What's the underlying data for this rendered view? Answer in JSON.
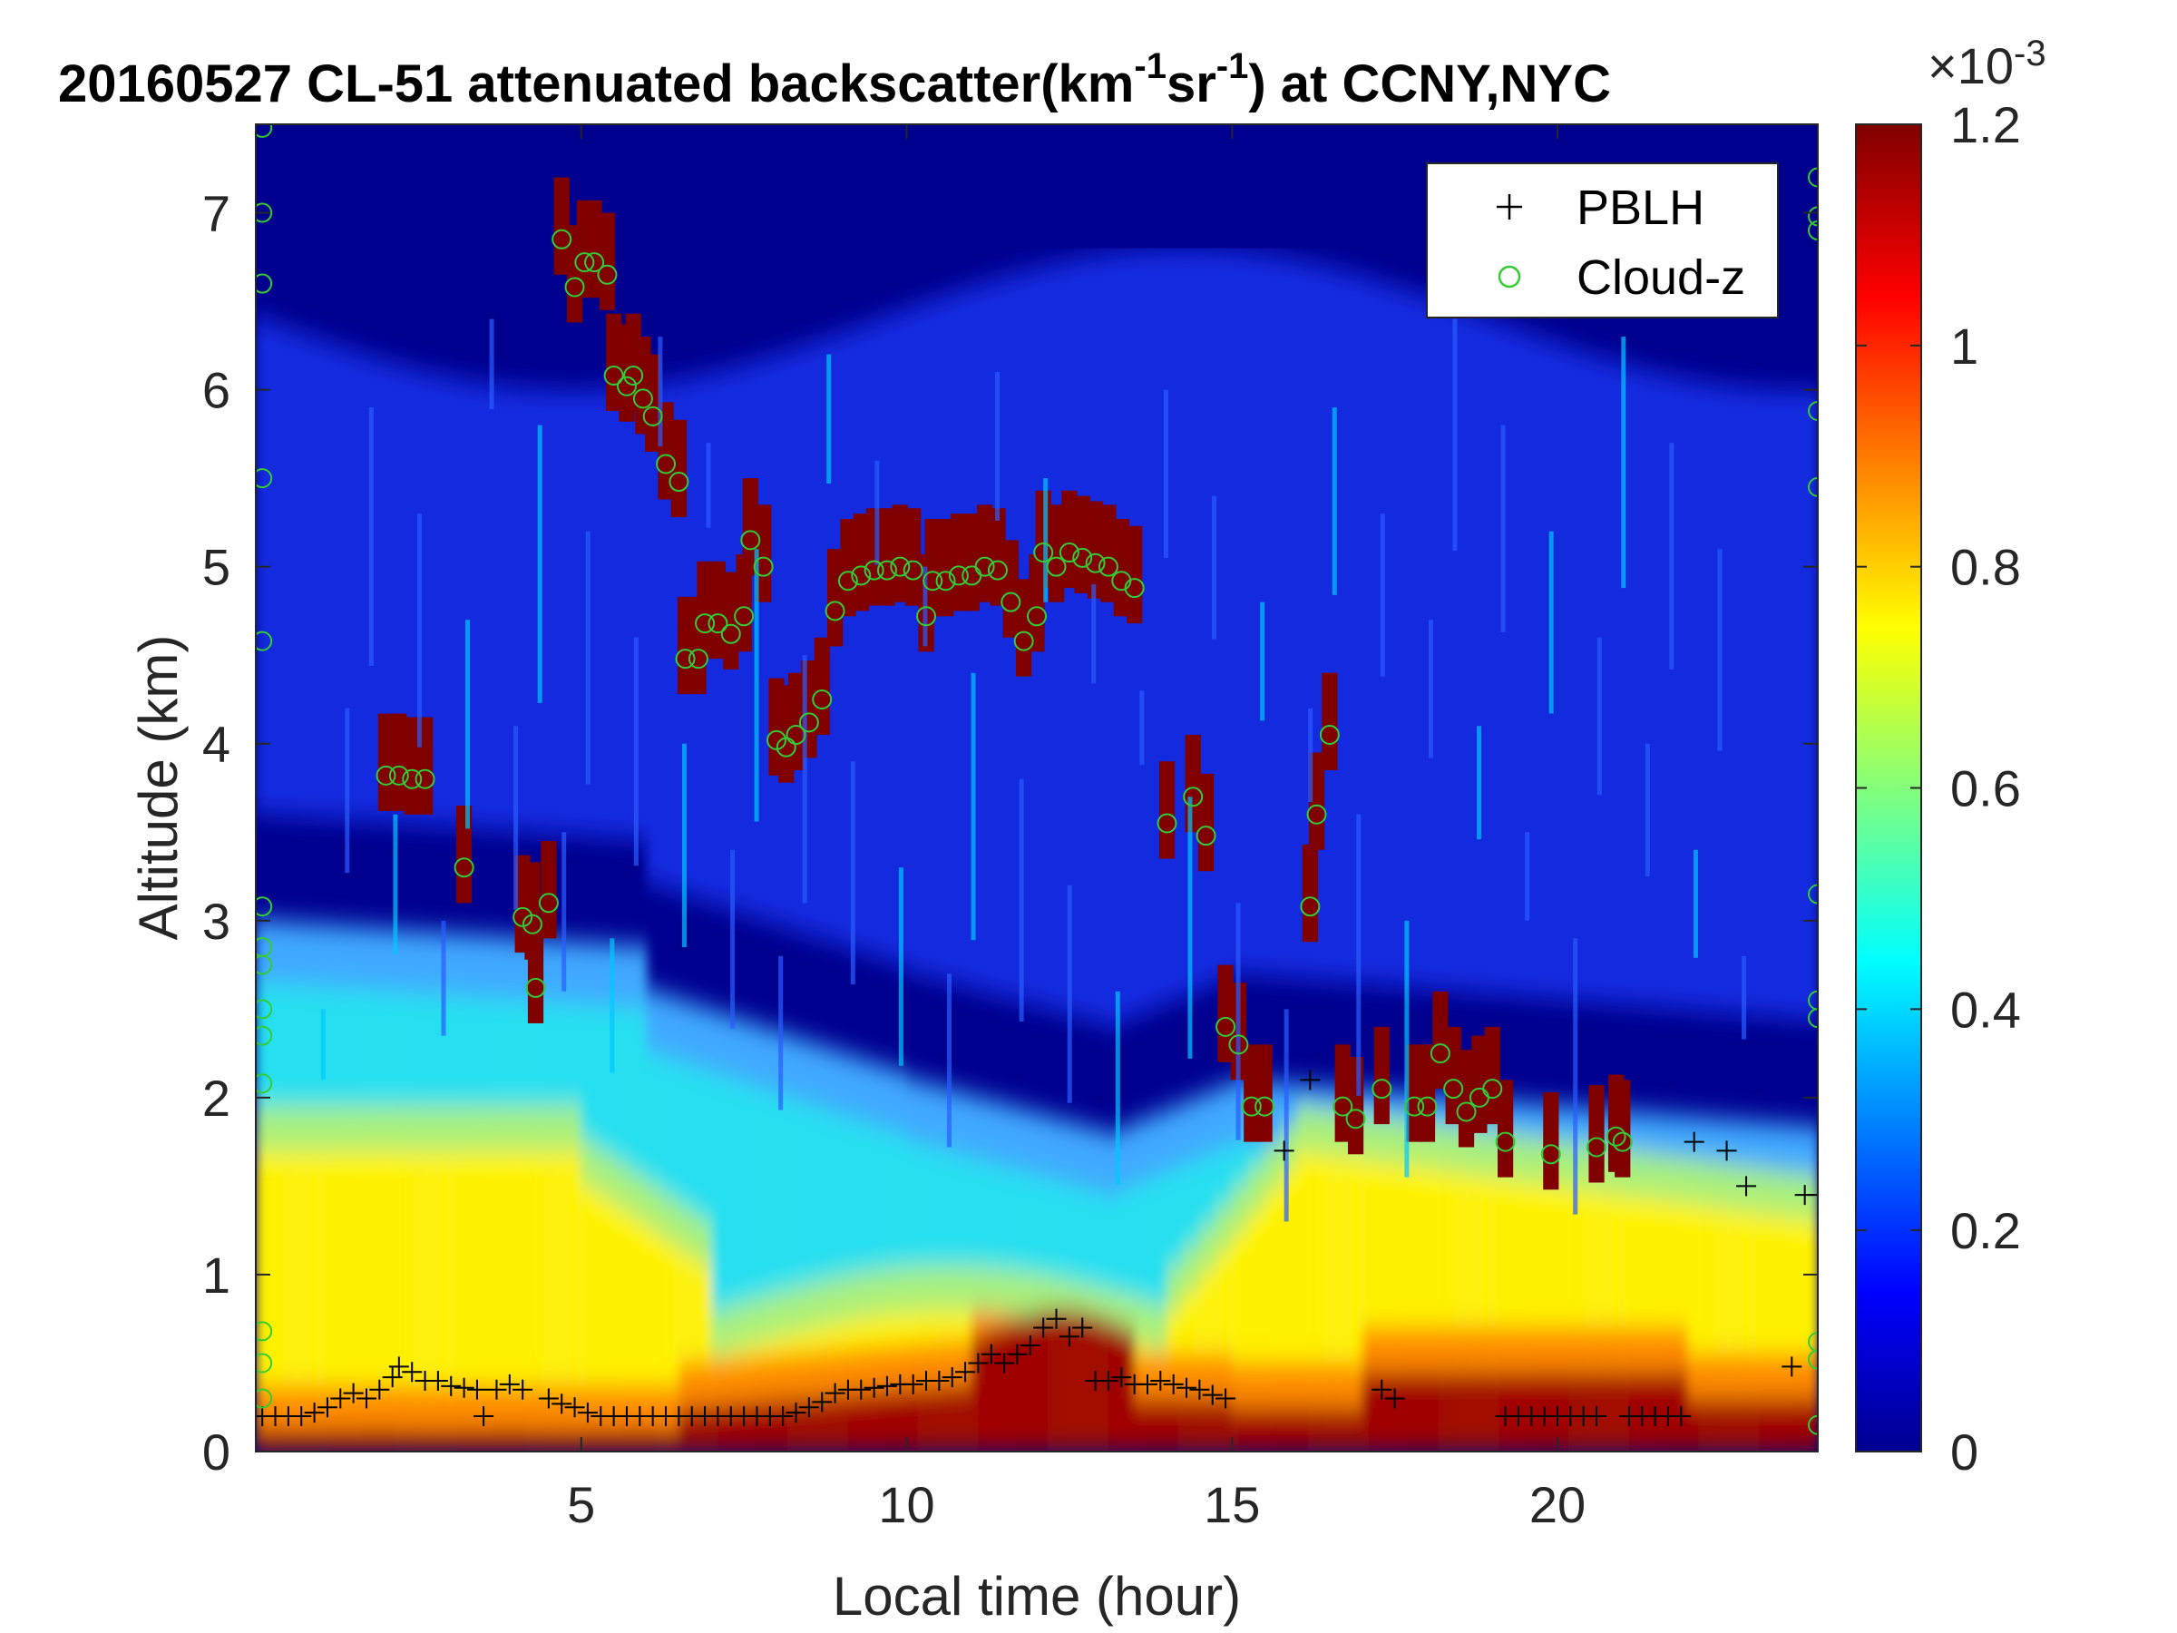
{
  "chart_data": {
    "type": "heatmap",
    "title": {
      "prefix": "20160527  CL-51 attenuated backscatter(km",
      "sup1": "-1",
      "mid": "sr",
      "sup2": "-1",
      "suffix": ") at CCNY,NYC"
    },
    "xlabel": "Local time (hour)",
    "ylabel": "Altitude (km)",
    "xlim": [
      0,
      24
    ],
    "ylim": [
      0,
      7.5
    ],
    "x_ticks": [
      5,
      10,
      15,
      20
    ],
    "y_ticks": [
      0,
      1,
      2,
      3,
      4,
      5,
      6,
      7
    ],
    "colorbar": {
      "colormap": "jet",
      "range": [
        0,
        1.2
      ],
      "ticks": [
        0,
        0.2,
        0.4,
        0.6,
        0.8,
        1,
        1.2
      ],
      "tick_labels": [
        "0",
        "0.2",
        "0.4",
        "0.6",
        "0.8",
        "1",
        "1.2"
      ],
      "exponent": {
        "base": "×10",
        "power": "-3"
      }
    },
    "legend": {
      "placement": "top-right",
      "entries": [
        {
          "label": "PBLH",
          "marker": "+",
          "color": "#000000"
        },
        {
          "label": "Cloud-z",
          "marker": "o",
          "color": "#33cc33"
        }
      ]
    },
    "series": [
      {
        "name": "PBLH",
        "points": [
          [
            0.1,
            0.2
          ],
          [
            0.3,
            0.2
          ],
          [
            0.5,
            0.2
          ],
          [
            0.7,
            0.2
          ],
          [
            0.9,
            0.22
          ],
          [
            1.1,
            0.25
          ],
          [
            1.3,
            0.3
          ],
          [
            1.5,
            0.33
          ],
          [
            1.7,
            0.3
          ],
          [
            1.9,
            0.35
          ],
          [
            2.1,
            0.42
          ],
          [
            2.2,
            0.48
          ],
          [
            2.4,
            0.45
          ],
          [
            2.6,
            0.4
          ],
          [
            2.8,
            0.4
          ],
          [
            3.0,
            0.37
          ],
          [
            3.2,
            0.36
          ],
          [
            3.4,
            0.35
          ],
          [
            3.5,
            0.2
          ],
          [
            3.7,
            0.35
          ],
          [
            3.9,
            0.38
          ],
          [
            4.1,
            0.35
          ],
          [
            4.5,
            0.3
          ],
          [
            4.7,
            0.27
          ],
          [
            4.9,
            0.25
          ],
          [
            5.1,
            0.22
          ],
          [
            5.3,
            0.2
          ],
          [
            5.5,
            0.2
          ],
          [
            5.7,
            0.2
          ],
          [
            5.9,
            0.2
          ],
          [
            6.1,
            0.2
          ],
          [
            6.3,
            0.2
          ],
          [
            6.5,
            0.2
          ],
          [
            6.7,
            0.2
          ],
          [
            6.9,
            0.2
          ],
          [
            7.1,
            0.2
          ],
          [
            7.3,
            0.2
          ],
          [
            7.5,
            0.2
          ],
          [
            7.7,
            0.2
          ],
          [
            7.9,
            0.2
          ],
          [
            8.1,
            0.2
          ],
          [
            8.3,
            0.22
          ],
          [
            8.5,
            0.25
          ],
          [
            8.7,
            0.28
          ],
          [
            8.9,
            0.33
          ],
          [
            9.1,
            0.35
          ],
          [
            9.3,
            0.35
          ],
          [
            9.5,
            0.36
          ],
          [
            9.7,
            0.37
          ],
          [
            9.9,
            0.38
          ],
          [
            10.1,
            0.38
          ],
          [
            10.3,
            0.4
          ],
          [
            10.5,
            0.4
          ],
          [
            10.7,
            0.42
          ],
          [
            10.9,
            0.45
          ],
          [
            11.1,
            0.5
          ],
          [
            11.3,
            0.55
          ],
          [
            11.5,
            0.5
          ],
          [
            11.7,
            0.55
          ],
          [
            11.9,
            0.6
          ],
          [
            12.1,
            0.7
          ],
          [
            12.3,
            0.75
          ],
          [
            12.5,
            0.65
          ],
          [
            12.7,
            0.7
          ],
          [
            12.9,
            0.4
          ],
          [
            13.1,
            0.4
          ],
          [
            13.3,
            0.42
          ],
          [
            13.5,
            0.38
          ],
          [
            13.7,
            0.38
          ],
          [
            13.9,
            0.4
          ],
          [
            14.1,
            0.38
          ],
          [
            14.3,
            0.36
          ],
          [
            14.5,
            0.35
          ],
          [
            14.7,
            0.32
          ],
          [
            14.9,
            0.3
          ],
          [
            15.8,
            1.7
          ],
          [
            16.2,
            2.1
          ],
          [
            17.3,
            0.35
          ],
          [
            17.5,
            0.3
          ],
          [
            19.2,
            0.2
          ],
          [
            19.4,
            0.2
          ],
          [
            19.6,
            0.2
          ],
          [
            19.8,
            0.2
          ],
          [
            20.0,
            0.2
          ],
          [
            20.2,
            0.2
          ],
          [
            20.4,
            0.2
          ],
          [
            20.6,
            0.2
          ],
          [
            21.1,
            0.2
          ],
          [
            21.3,
            0.2
          ],
          [
            21.5,
            0.2
          ],
          [
            21.7,
            0.2
          ],
          [
            21.9,
            0.2
          ],
          [
            22.1,
            1.75
          ],
          [
            22.6,
            1.7
          ],
          [
            22.9,
            1.5
          ],
          [
            23.6,
            0.48
          ],
          [
            23.8,
            1.45
          ],
          [
            24.0,
            1.45
          ]
        ]
      },
      {
        "name": "Cloud-z",
        "points": [
          [
            2.0,
            3.82
          ],
          [
            2.2,
            3.82
          ],
          [
            2.4,
            3.8
          ],
          [
            2.6,
            3.8
          ],
          [
            3.2,
            3.3
          ],
          [
            4.1,
            3.02
          ],
          [
            4.25,
            2.98
          ],
          [
            4.5,
            3.1
          ],
          [
            4.3,
            2.62
          ],
          [
            4.7,
            6.85
          ],
          [
            4.9,
            6.58
          ],
          [
            5.05,
            6.72
          ],
          [
            5.2,
            6.72
          ],
          [
            5.4,
            6.65
          ],
          [
            5.5,
            6.08
          ],
          [
            5.7,
            6.02
          ],
          [
            5.8,
            6.08
          ],
          [
            5.95,
            5.95
          ],
          [
            6.1,
            5.85
          ],
          [
            6.3,
            5.58
          ],
          [
            6.5,
            5.48
          ],
          [
            6.6,
            4.48
          ],
          [
            6.8,
            4.48
          ],
          [
            6.9,
            4.68
          ],
          [
            7.1,
            4.68
          ],
          [
            7.3,
            4.62
          ],
          [
            7.5,
            4.72
          ],
          [
            7.6,
            5.15
          ],
          [
            7.8,
            5.0
          ],
          [
            8.0,
            4.02
          ],
          [
            8.15,
            3.98
          ],
          [
            8.3,
            4.05
          ],
          [
            8.5,
            4.12
          ],
          [
            8.7,
            4.25
          ],
          [
            8.9,
            4.75
          ],
          [
            9.1,
            4.92
          ],
          [
            9.3,
            4.95
          ],
          [
            9.5,
            4.98
          ],
          [
            9.7,
            4.98
          ],
          [
            9.9,
            5.0
          ],
          [
            10.1,
            4.98
          ],
          [
            10.3,
            4.72
          ],
          [
            10.4,
            4.92
          ],
          [
            10.6,
            4.92
          ],
          [
            10.8,
            4.95
          ],
          [
            11.0,
            4.95
          ],
          [
            11.2,
            5.0
          ],
          [
            11.4,
            4.98
          ],
          [
            11.6,
            4.8
          ],
          [
            11.8,
            4.58
          ],
          [
            12.0,
            4.72
          ],
          [
            12.1,
            5.08
          ],
          [
            12.3,
            5.0
          ],
          [
            12.5,
            5.08
          ],
          [
            12.7,
            5.05
          ],
          [
            12.9,
            5.02
          ],
          [
            13.1,
            5.0
          ],
          [
            13.3,
            4.92
          ],
          [
            13.5,
            4.88
          ],
          [
            14.0,
            3.55
          ],
          [
            14.4,
            3.7
          ],
          [
            14.6,
            3.48
          ],
          [
            14.9,
            2.4
          ],
          [
            15.1,
            2.3
          ],
          [
            15.3,
            1.95
          ],
          [
            15.5,
            1.95
          ],
          [
            16.2,
            3.08
          ],
          [
            16.3,
            3.6
          ],
          [
            16.5,
            4.05
          ],
          [
            16.7,
            1.95
          ],
          [
            16.9,
            1.88
          ],
          [
            17.3,
            2.05
          ],
          [
            17.8,
            1.95
          ],
          [
            18.0,
            1.95
          ],
          [
            18.2,
            2.25
          ],
          [
            18.4,
            2.05
          ],
          [
            18.6,
            1.92
          ],
          [
            18.8,
            2.0
          ],
          [
            19.0,
            2.05
          ],
          [
            19.2,
            1.75
          ],
          [
            19.9,
            1.68
          ],
          [
            20.6,
            1.72
          ],
          [
            20.9,
            1.78
          ],
          [
            21.0,
            1.75
          ],
          [
            0.1,
            7.48
          ],
          [
            0.1,
            7.0
          ],
          [
            0.1,
            6.6
          ],
          [
            0.1,
            5.5
          ],
          [
            0.1,
            4.58
          ],
          [
            0.1,
            3.08
          ],
          [
            0.1,
            2.85
          ],
          [
            0.1,
            2.75
          ],
          [
            0.1,
            2.5
          ],
          [
            0.1,
            2.35
          ],
          [
            0.1,
            2.08
          ],
          [
            0.1,
            0.68
          ],
          [
            0.1,
            0.5
          ],
          [
            0.1,
            0.3
          ],
          [
            24.0,
            7.2
          ],
          [
            24.0,
            6.98
          ],
          [
            24.0,
            6.9
          ],
          [
            24.0,
            5.88
          ],
          [
            24.0,
            5.45
          ],
          [
            24.0,
            3.15
          ],
          [
            24.0,
            2.55
          ],
          [
            24.0,
            2.45
          ],
          [
            24.0,
            0.62
          ],
          [
            24.0,
            0.52
          ],
          [
            24.0,
            0.15
          ]
        ]
      }
    ]
  }
}
